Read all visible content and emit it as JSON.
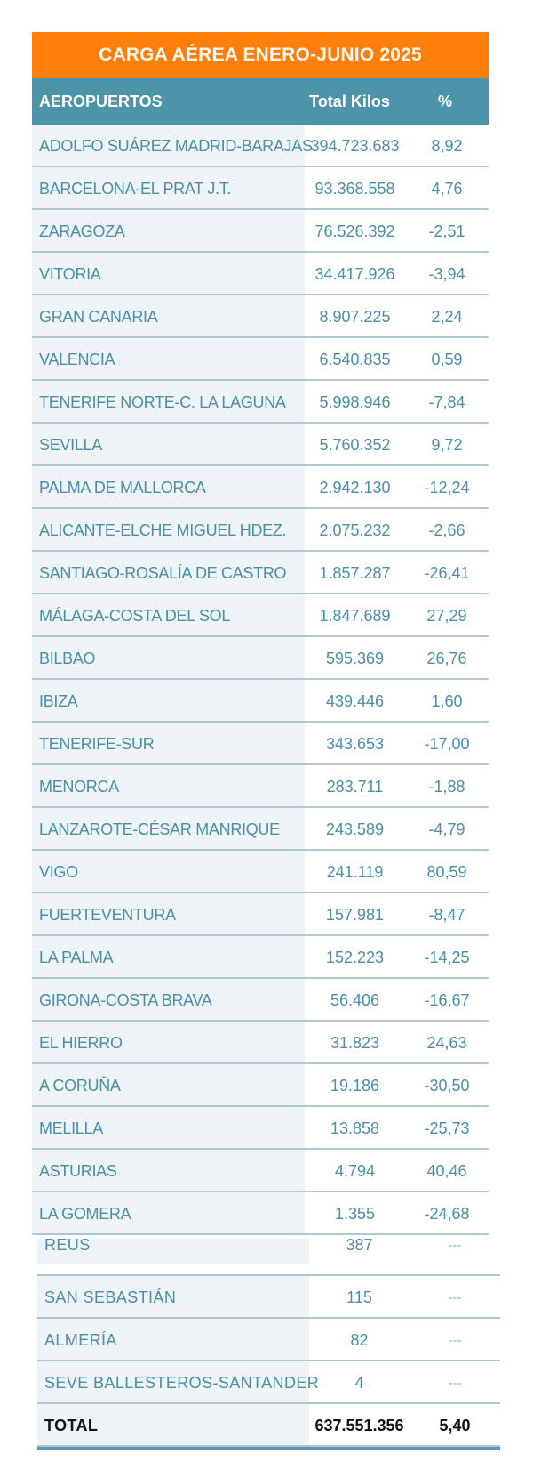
{
  "title": "CARGA AÉREA ENERO-JUNIO 2025",
  "columns": {
    "name": "AEROPUERTOS",
    "kilos": "Total Kilos",
    "pct": "%"
  },
  "rows": [
    {
      "name": "ADOLFO SUÁREZ MADRID-BARAJAS",
      "kilos": "394.723.683",
      "pct": "8,92"
    },
    {
      "name": "BARCELONA-EL PRAT J.T.",
      "kilos": "93.368.558",
      "pct": "4,76"
    },
    {
      "name": "ZARAGOZA",
      "kilos": "76.526.392",
      "pct": "-2,51"
    },
    {
      "name": "VITORIA",
      "kilos": "34.417.926",
      "pct": "-3,94"
    },
    {
      "name": "GRAN CANARIA",
      "kilos": "8.907.225",
      "pct": "2,24"
    },
    {
      "name": "VALENCIA",
      "kilos": "6.540.835",
      "pct": "0,59"
    },
    {
      "name": "TENERIFE NORTE-C. LA LAGUNA",
      "kilos": "5.998.946",
      "pct": "-7,84"
    },
    {
      "name": "SEVILLA",
      "kilos": "5.760.352",
      "pct": "9,72"
    },
    {
      "name": "PALMA DE MALLORCA",
      "kilos": "2.942.130",
      "pct": "-12,24"
    },
    {
      "name": "ALICANTE-ELCHE MIGUEL HDEZ.",
      "kilos": "2.075.232",
      "pct": "-2,66"
    },
    {
      "name": "SANTIAGO-ROSALÍA DE CASTRO",
      "kilos": "1.857.287",
      "pct": "-26,41"
    },
    {
      "name": "MÁLAGA-COSTA DEL SOL",
      "kilos": "1.847.689",
      "pct": "27,29"
    },
    {
      "name": "BILBAO",
      "kilos": "595.369",
      "pct": "26,76"
    },
    {
      "name": "IBIZA",
      "kilos": "439.446",
      "pct": "1,60"
    },
    {
      "name": "TENERIFE-SUR",
      "kilos": "343.653",
      "pct": "-17,00"
    },
    {
      "name": "MENORCA",
      "kilos": "283.711",
      "pct": "-1,88"
    },
    {
      "name": "LANZAROTE-CÉSAR MANRIQUE",
      "kilos": "243.589",
      "pct": "-4,79"
    },
    {
      "name": "VIGO",
      "kilos": "241.119",
      "pct": "80,59"
    },
    {
      "name": "FUERTEVENTURA",
      "kilos": "157.981",
      "pct": "-8,47"
    },
    {
      "name": "LA PALMA",
      "kilos": "152.223",
      "pct": "-14,25"
    },
    {
      "name": "GIRONA-COSTA BRAVA",
      "kilos": "56.406",
      "pct": "-16,67"
    },
    {
      "name": "EL HIERRO",
      "kilos": "31.823",
      "pct": "24,63"
    },
    {
      "name": "A CORUÑA",
      "kilos": "19.186",
      "pct": "-30,50"
    },
    {
      "name": "MELILLA",
      "kilos": "13.858",
      "pct": "-25,73"
    },
    {
      "name": "ASTURIAS",
      "kilos": "4.794",
      "pct": "40,46"
    },
    {
      "name": "LA GOMERA",
      "kilos": "1.355",
      "pct": "-24,68"
    }
  ],
  "lower_rows": [
    {
      "name": "REUS",
      "kilos": "387",
      "pct": "---"
    },
    {
      "name": "SAN SEBASTIÁN",
      "kilos": "115",
      "pct": "---"
    },
    {
      "name": "ALMERÍA",
      "kilos": "82",
      "pct": "---"
    },
    {
      "name": "SEVE BALLESTEROS-SANTANDER",
      "kilos": "4",
      "pct": "---"
    }
  ],
  "total": {
    "label": "TOTAL",
    "kilos": "637.551.356",
    "pct": "5,40"
  },
  "colors": {
    "title_bg": "#ff7f0a",
    "header_bg": "#4d94ab",
    "text": "#4b8ea5",
    "name_col_bg": "#eef3f7",
    "divider": "#aec7d4"
  }
}
